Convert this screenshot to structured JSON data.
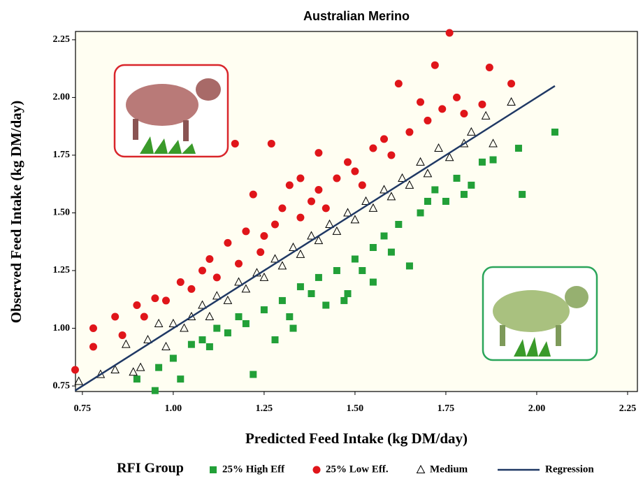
{
  "chart_data": {
    "type": "scatter",
    "title": "Australian Merino",
    "xlabel": "Predicted Feed Intake (kg DM/day)",
    "ylabel": "Observed Feed Intake (kg DM/day)",
    "legend_title": "RFI Group",
    "legend": "bottom",
    "xlim": [
      0.731,
      2.277
    ],
    "ylim": [
      0.726,
      2.286
    ],
    "xticks": [
      {
        "value": 0.75,
        "label": "0.75"
      },
      {
        "value": 1.0,
        "label": "1.00"
      },
      {
        "value": 1.25,
        "label": "1.25"
      },
      {
        "value": 1.5,
        "label": "1.50"
      },
      {
        "value": 1.75,
        "label": "1.75"
      },
      {
        "value": 2.0,
        "label": "2.00"
      },
      {
        "value": 2.25,
        "label": "2.25"
      }
    ],
    "yticks": [
      {
        "value": 0.75,
        "label": "0.75"
      },
      {
        "value": 1.0,
        "label": "1.00"
      },
      {
        "value": 1.25,
        "label": "1.25"
      },
      {
        "value": 1.5,
        "label": "1.50"
      },
      {
        "value": 1.75,
        "label": "1.75"
      },
      {
        "value": 2.0,
        "label": "2.00"
      },
      {
        "value": 2.25,
        "label": "2.25"
      }
    ],
    "series": [
      {
        "name": "25% High Eff",
        "color": "#22a038",
        "marker": "square",
        "x": [
          0.9,
          0.95,
          0.96,
          1.0,
          1.02,
          1.05,
          1.08,
          1.1,
          1.12,
          1.15,
          1.18,
          1.2,
          1.22,
          1.25,
          1.28,
          1.3,
          1.33,
          1.35,
          1.38,
          1.4,
          1.42,
          1.45,
          1.47,
          1.5,
          1.52,
          1.55,
          1.58,
          1.6,
          1.62,
          1.65,
          1.68,
          1.7,
          1.72,
          1.75,
          1.78,
          1.8,
          1.82,
          1.85,
          1.88,
          1.95,
          1.96,
          2.05,
          1.55,
          1.48,
          1.32
        ],
        "values": [
          0.78,
          0.73,
          0.83,
          0.87,
          0.78,
          0.93,
          0.95,
          0.92,
          1.0,
          0.98,
          1.05,
          1.02,
          0.8,
          1.08,
          0.95,
          1.12,
          1.0,
          1.18,
          1.15,
          1.22,
          1.1,
          1.25,
          1.12,
          1.3,
          1.25,
          1.35,
          1.4,
          1.33,
          1.45,
          1.27,
          1.5,
          1.55,
          1.6,
          1.55,
          1.65,
          1.58,
          1.62,
          1.72,
          1.73,
          1.78,
          1.58,
          1.85,
          1.2,
          1.15,
          1.05
        ]
      },
      {
        "name": "25% Low Eff.",
        "color": "#e0151a",
        "marker": "circle",
        "x": [
          0.73,
          0.78,
          0.78,
          0.84,
          0.86,
          0.9,
          0.92,
          0.95,
          0.98,
          1.02,
          1.05,
          1.08,
          1.1,
          1.12,
          1.15,
          1.17,
          1.18,
          1.2,
          1.22,
          1.24,
          1.27,
          1.28,
          1.3,
          1.32,
          1.35,
          1.38,
          1.4,
          1.42,
          1.45,
          1.48,
          1.5,
          1.52,
          1.55,
          1.58,
          1.6,
          1.62,
          1.65,
          1.68,
          1.7,
          1.72,
          1.74,
          1.76,
          1.78,
          1.8,
          1.87,
          1.93,
          1.85,
          1.4,
          1.35,
          1.25
        ],
        "values": [
          0.82,
          1.0,
          0.92,
          1.05,
          0.97,
          1.1,
          1.05,
          1.13,
          1.12,
          1.2,
          1.17,
          1.25,
          1.3,
          1.22,
          1.37,
          1.8,
          1.28,
          1.42,
          1.58,
          1.33,
          1.8,
          1.45,
          1.52,
          1.62,
          1.48,
          1.55,
          1.6,
          1.52,
          1.65,
          1.72,
          1.68,
          1.62,
          1.78,
          1.82,
          1.75,
          2.06,
          1.85,
          1.98,
          1.9,
          2.14,
          1.95,
          2.28,
          2.0,
          1.93,
          2.13,
          2.06,
          1.97,
          1.76,
          1.65,
          1.4
        ]
      },
      {
        "name": "Medium",
        "color": "#000000",
        "marker": "triangle",
        "x": [
          0.74,
          0.8,
          0.84,
          0.87,
          0.89,
          0.91,
          0.93,
          0.96,
          0.98,
          1.0,
          1.03,
          1.05,
          1.08,
          1.1,
          1.12,
          1.15,
          1.18,
          1.2,
          1.23,
          1.25,
          1.28,
          1.3,
          1.33,
          1.35,
          1.38,
          1.4,
          1.43,
          1.45,
          1.48,
          1.5,
          1.53,
          1.55,
          1.58,
          1.6,
          1.63,
          1.65,
          1.68,
          1.7,
          1.73,
          1.76,
          1.8,
          1.82,
          1.86,
          1.88,
          1.93
        ],
        "values": [
          0.77,
          0.8,
          0.82,
          0.93,
          0.81,
          0.83,
          0.95,
          1.02,
          0.92,
          1.02,
          1.0,
          1.05,
          1.1,
          1.05,
          1.14,
          1.12,
          1.2,
          1.17,
          1.24,
          1.22,
          1.3,
          1.27,
          1.35,
          1.32,
          1.4,
          1.38,
          1.45,
          1.42,
          1.5,
          1.47,
          1.55,
          1.52,
          1.6,
          1.57,
          1.65,
          1.62,
          1.72,
          1.67,
          1.78,
          1.74,
          1.8,
          1.85,
          1.92,
          1.8,
          1.98
        ]
      },
      {
        "name": "Regression",
        "color": "#1f3864",
        "type": "line",
        "x": [
          0.73,
          2.05
        ],
        "values": [
          0.73,
          2.05
        ]
      }
    ]
  }
}
